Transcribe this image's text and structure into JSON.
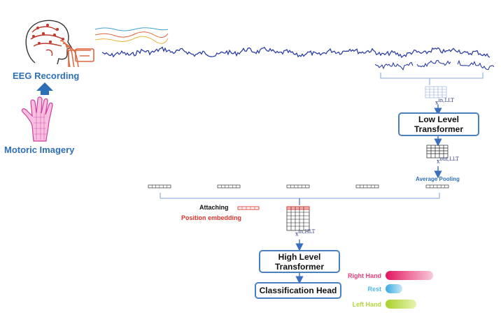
{
  "labels": {
    "eeg_recording": "EEG Recording",
    "motoric_imagery": "Motoric Imagery",
    "x_in_llt": "x",
    "x_in_llt_sup": "in,LLT",
    "x_out_llt": "x",
    "x_out_llt_sup": "out,LLT",
    "average_pooling": "Average Pooling",
    "attaching": "Attaching",
    "position_embedding": "Position embedding",
    "x_in_hlt": "x",
    "x_in_hlt_sup": "in,HLT"
  },
  "blocks": {
    "low_level_transformer": "Low Level Transformer",
    "high_level_transformer": "High Level Transformer",
    "classification_head": "Classification Head"
  },
  "classes": [
    {
      "label": "Right Hand",
      "color": "#e8407a",
      "light": "#f7b6cf",
      "level": 0.85
    },
    {
      "label": "Rest",
      "color": "#4fb9e8",
      "light": "#b9e3f6",
      "level": 0.3
    },
    {
      "label": "Left Hand",
      "color": "#b2d63a",
      "light": "#e2f0a8",
      "level": 0.55
    }
  ],
  "colors": {
    "accent_blue": "#2e6fb5",
    "box_border": "#4a7fc1",
    "signal": "#2b3ea8",
    "embedding_red": "#e0332b"
  }
}
